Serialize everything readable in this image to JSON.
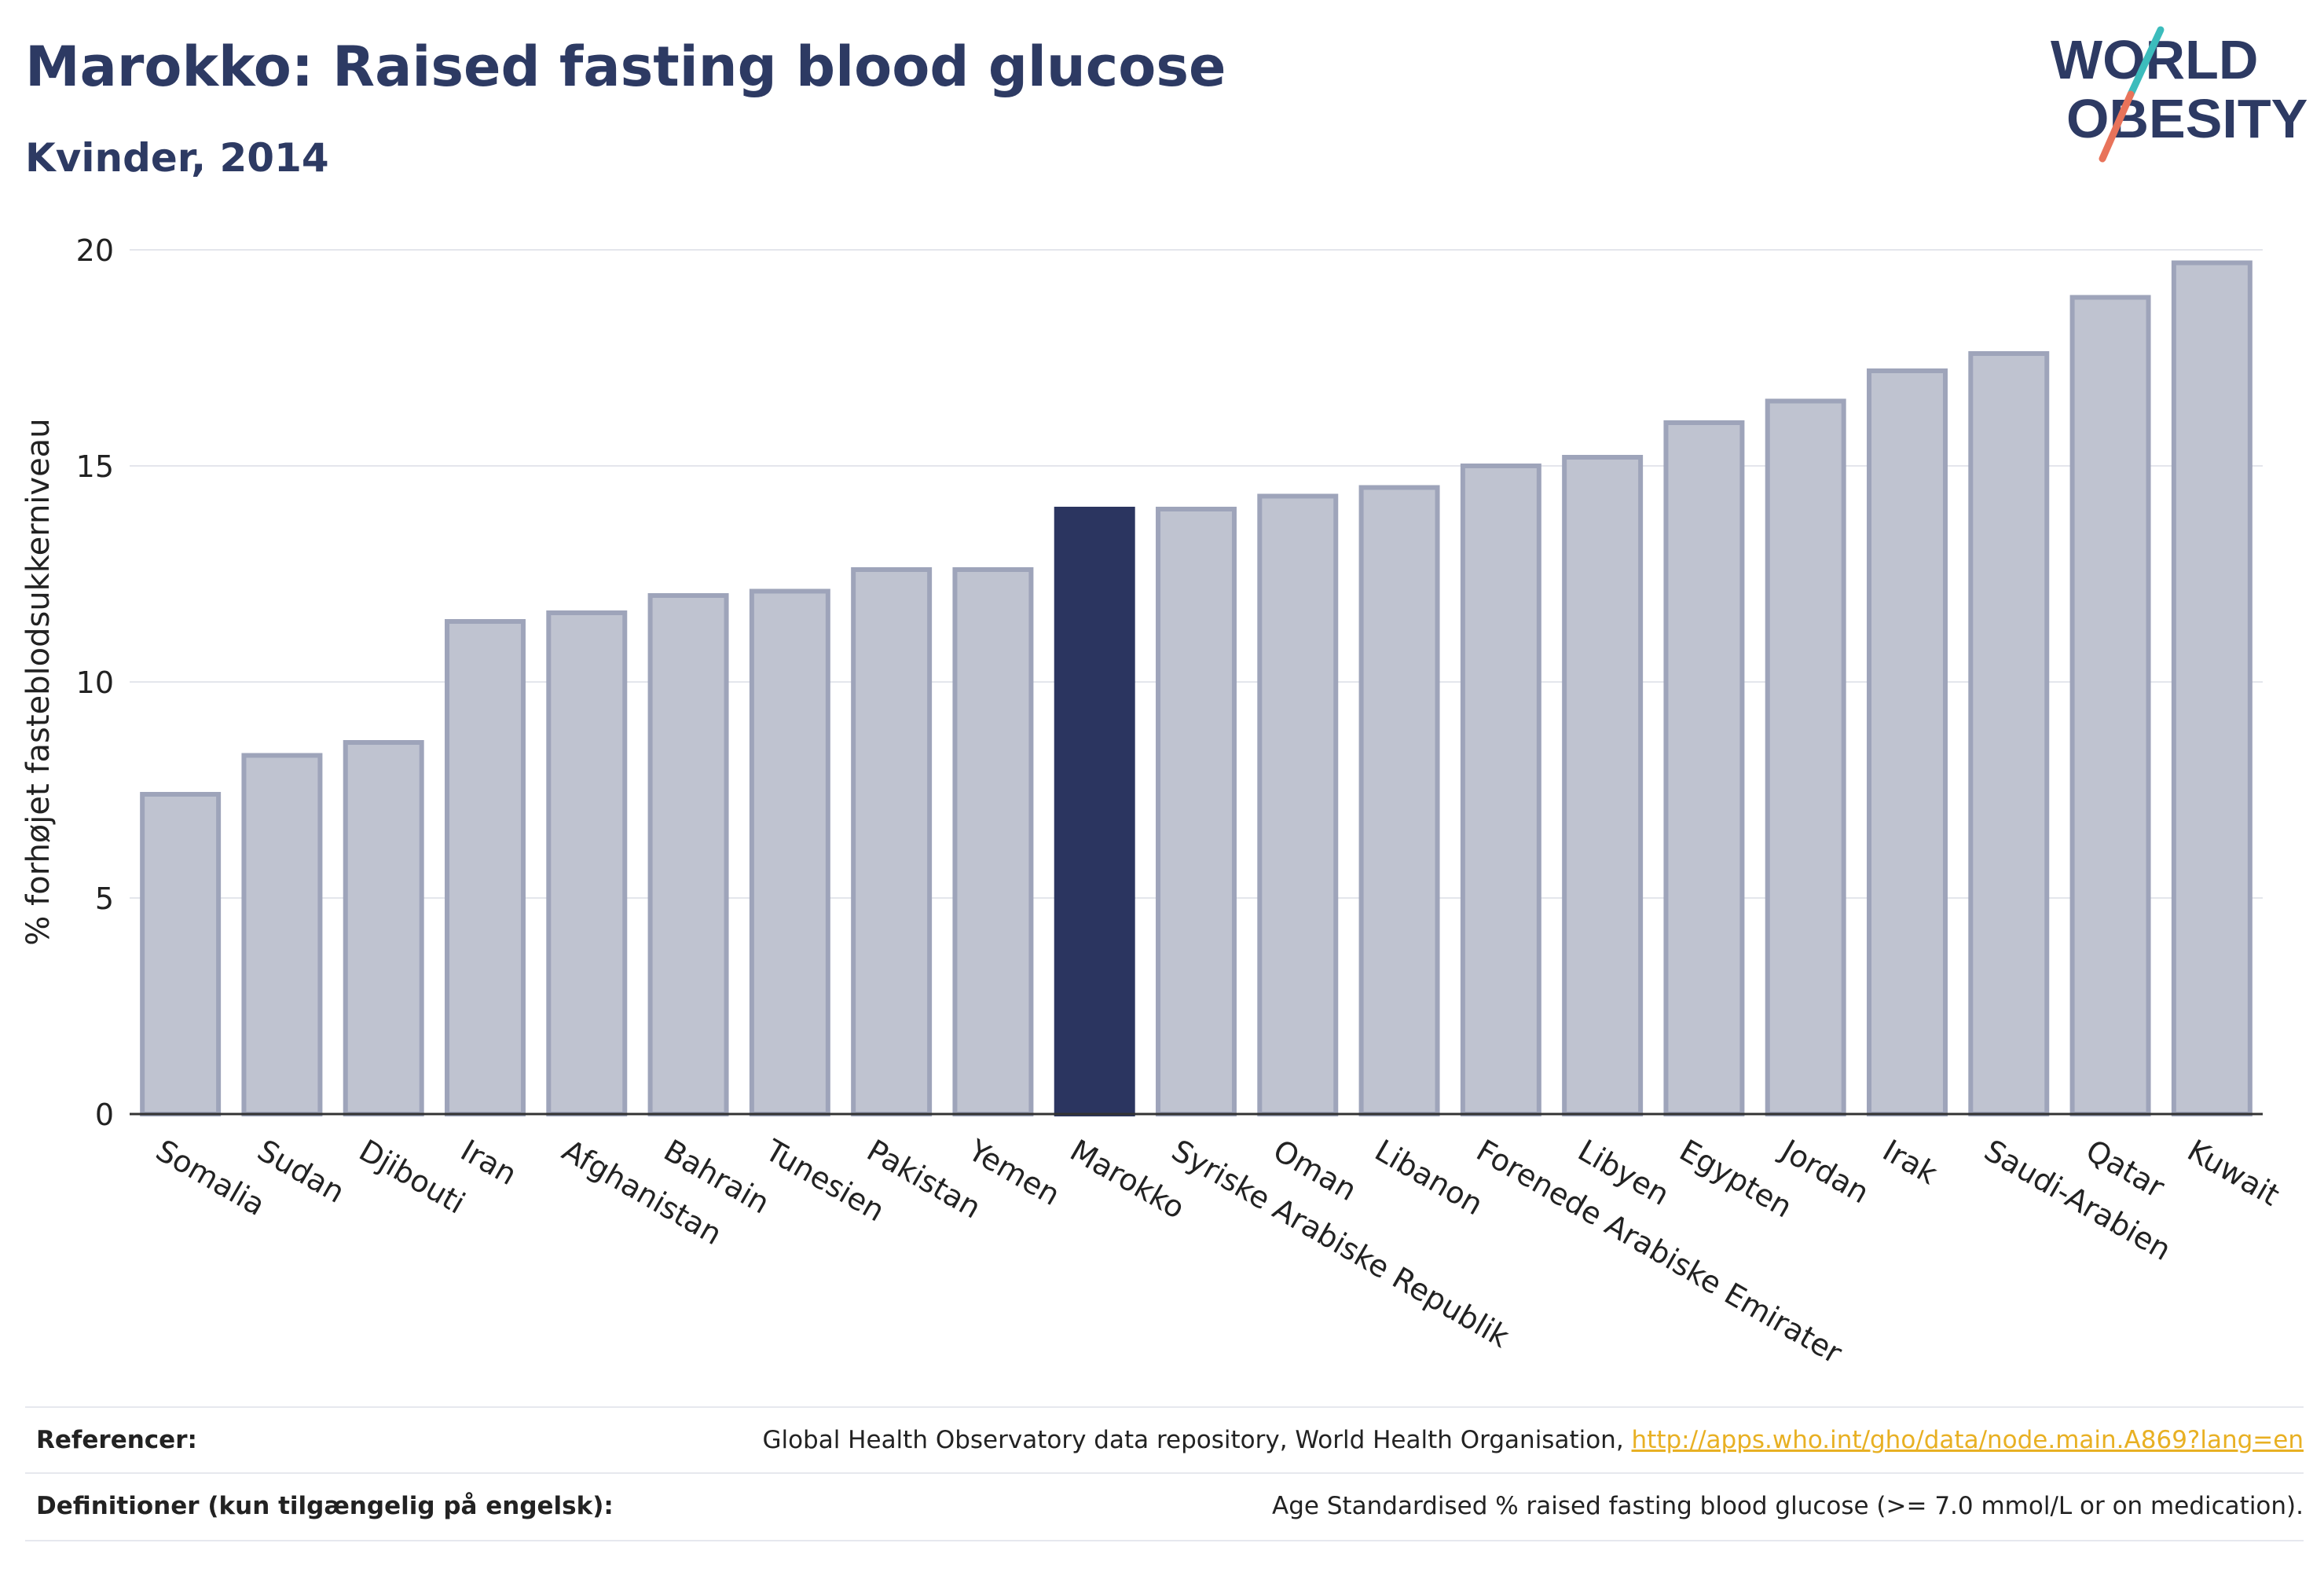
{
  "header": {
    "title": "Marokko: Raised fasting blood glucose",
    "subtitle": "Kvinder, 2014"
  },
  "logo": {
    "line1": "WORLD",
    "line2": "OBESITY",
    "accent_colors": [
      "#3cbcbc",
      "#e8735a"
    ]
  },
  "chart_data": {
    "type": "bar",
    "title": "Marokko: Raised fasting blood glucose",
    "subtitle": "Kvinder, 2014",
    "ylabel": "% forhøjet fasteblodsukkerniveau",
    "xlabel": "",
    "ylim": [
      0,
      20
    ],
    "yticks": [
      0,
      5,
      10,
      15,
      20
    ],
    "grid": true,
    "highlight": "Marokko",
    "colors": {
      "highlight": "#2b3560",
      "default": "#bfc3d0",
      "default_edge": "#9ea4ba"
    },
    "categories": [
      "Somalia",
      "Sudan",
      "Djibouti",
      "Iran",
      "Afghanistan",
      "Bahrain",
      "Tunesien",
      "Pakistan",
      "Yemen",
      "Marokko",
      "Syriske Arabiske Republik",
      "Oman",
      "Libanon",
      "Forenede Arabiske Emirater",
      "Libyen",
      "Egypten",
      "Jordan",
      "Irak",
      "Saudi-Arabien",
      "Qatar",
      "Kuwait"
    ],
    "values": [
      7.4,
      8.3,
      8.6,
      11.4,
      11.6,
      12.0,
      12.1,
      12.6,
      12.6,
      14.0,
      14.0,
      14.3,
      14.5,
      15.0,
      15.2,
      16.0,
      16.5,
      17.2,
      17.6,
      18.9,
      19.7
    ]
  },
  "footer": {
    "references_label": "Referencer:",
    "references_text": "Global Health Observatory data repository, World Health Organisation, ",
    "references_link": "http://apps.who.int/gho/data/node.main.A869?lang=en",
    "definitions_label": "Definitioner (kun tilgængelig på engelsk):",
    "definitions_text": "Age Standardised % raised fasting blood glucose (>= 7.0 mmol/L or on medication)."
  }
}
